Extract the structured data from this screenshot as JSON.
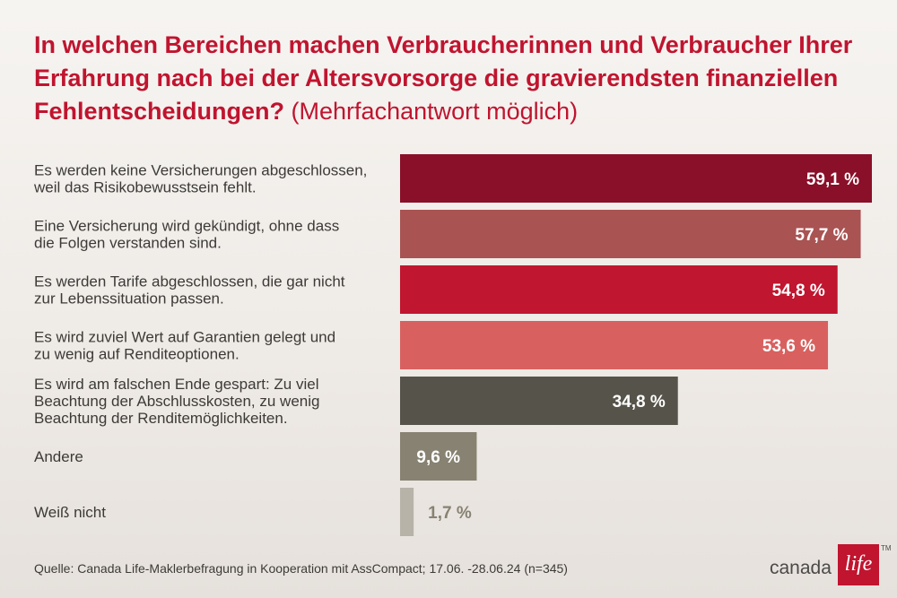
{
  "title": {
    "main": "In welchen Bereichen machen Verbraucherinnen und Verbraucher Ihrer Erfahrung nach bei der Altersvorsorge die gravierendsten finanziellen Fehlentscheidungen?",
    "suffix": "(Mehrfachantwort möglich)"
  },
  "chart_data": {
    "type": "bar",
    "orientation": "horizontal",
    "categories": [
      [
        "Es werden keine Versicherungen abgeschlossen,",
        "weil das Risikobewusstsein fehlt."
      ],
      [
        "Eine Versicherung wird gekündigt, ohne dass",
        "die Folgen verstanden sind."
      ],
      [
        "Es werden Tarife abgeschlossen, die gar nicht",
        "zur Lebenssituation passen."
      ],
      [
        "Es wird zuviel Wert auf Garantien gelegt und",
        "zu wenig auf Renditeoptionen."
      ],
      [
        "Es wird am falschen Ende gespart: Zu viel",
        "Beachtung der Abschlusskosten, zu wenig",
        "Beachtung der Renditemöglichkeiten."
      ],
      [
        "Andere"
      ],
      [
        "Weiß nicht"
      ]
    ],
    "values": [
      59.1,
      57.7,
      54.8,
      53.6,
      34.8,
      9.6,
      1.7
    ],
    "value_labels": [
      "59,1 %",
      "57,7 %",
      "54,8 %",
      "53,6 %",
      "34,8 %",
      "9,6 %",
      "1,7 %"
    ],
    "colors": [
      "#8a0f28",
      "#a95353",
      "#c0162f",
      "#d8615f",
      "#56544a",
      "#878271",
      "#b7b3a8"
    ],
    "value_label_colors": [
      "#ffffff",
      "#ffffff",
      "#ffffff",
      "#ffffff",
      "#ffffff",
      "#ffffff",
      "#878271"
    ],
    "xlim": [
      0,
      59.1
    ]
  },
  "source": "Quelle: Canada Life-Maklerbefragung in Kooperation mit AssCompact; 17.06. -28.06.24 (n=345)",
  "logo": {
    "word": "canada",
    "mark": "life",
    "tm": "TM",
    "brand_color": "#c0142f"
  }
}
